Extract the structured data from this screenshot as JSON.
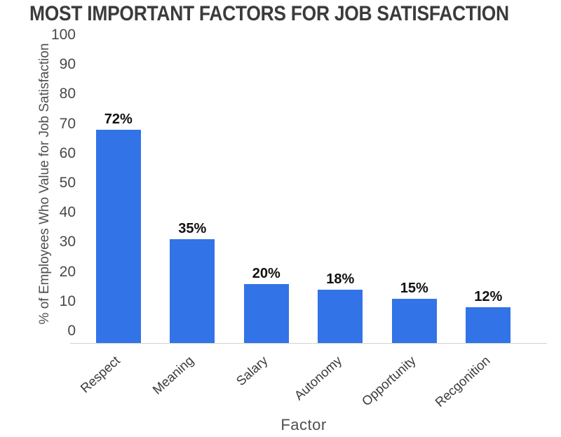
{
  "chart_data": {
    "type": "bar",
    "title": "MOST IMPORTANT FACTORS FOR JOB SATISFACTION",
    "xlabel": "Factor",
    "ylabel": "% of Employees Who Value for Job Satisfaction",
    "categories": [
      "Respect",
      "Meaning",
      "Salary",
      "Autonomy",
      "Opportunity",
      "Recgonition"
    ],
    "values": [
      72,
      35,
      20,
      18,
      15,
      12
    ],
    "data_labels": [
      "72%",
      "35%",
      "20%",
      "18%",
      "15%",
      "12%"
    ],
    "ylim": [
      0,
      100
    ],
    "yticks": [
      0,
      10,
      20,
      30,
      40,
      50,
      60,
      70,
      80,
      90,
      100
    ],
    "grid": false,
    "legend": "none"
  },
  "colors": {
    "bar": "#3273E8",
    "title_text": "#3B3B3B",
    "tick_text": "#484848",
    "data_label_text": "#111111",
    "axis_title_text": "#4F4F4F",
    "baseline": "#D2D2D2",
    "background": "#FFFFFF"
  }
}
